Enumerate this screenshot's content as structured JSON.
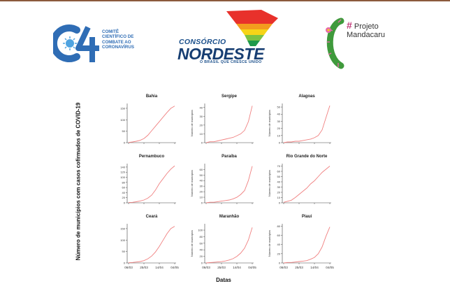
{
  "colors": {
    "line": "#f08080",
    "axis": "#444444",
    "top_rule": "#8b5a3c"
  },
  "logos": {
    "c4": {
      "lines": [
        "COMITÊ",
        "CIENTÍFICO DE",
        "COMBATE AO",
        "CORONAVÍRUS"
      ],
      "color": "#2f6db5",
      "icon": "c4-virus-logo-icon"
    },
    "nordeste": {
      "top": "CONSÓRCIO",
      "main": "NORDESTE",
      "tagline": "O BRASIL QUE CRESCE UNIDO",
      "icon": "nordeste-map-logo-icon"
    },
    "mandacaru": {
      "hash": "#",
      "line1": "Projeto",
      "line2": "Mandacaru",
      "icon": "cactus-logo-icon"
    }
  },
  "chart_data": [
    {
      "type": "line",
      "title": "Bahia",
      "ylabel": "",
      "ylim": [
        0,
        165
      ],
      "yticks": [
        0,
        50,
        100,
        150
      ],
      "x": [
        0,
        5,
        10,
        15,
        20,
        25,
        30,
        35,
        40,
        45,
        50,
        55,
        60
      ],
      "values": [
        1,
        3,
        6,
        10,
        18,
        32,
        52,
        72,
        92,
        112,
        132,
        150,
        160
      ]
    },
    {
      "type": "line",
      "title": "Sergipe",
      "ylabel": "Número de municípios",
      "ylim": [
        0,
        43
      ],
      "yticks": [
        0,
        10,
        20,
        30,
        40
      ],
      "x": [
        0,
        5,
        10,
        15,
        20,
        25,
        30,
        35,
        40,
        45,
        50,
        55,
        60
      ],
      "values": [
        0,
        1,
        1,
        2,
        3,
        4,
        5,
        6,
        8,
        10,
        14,
        24,
        42
      ]
    },
    {
      "type": "line",
      "title": "Alagoas",
      "ylabel": "Número de municípios",
      "ylim": [
        0,
        53
      ],
      "yticks": [
        0,
        10,
        20,
        30,
        40,
        50
      ],
      "x": [
        0,
        5,
        10,
        15,
        20,
        25,
        30,
        35,
        40,
        45,
        50,
        55,
        60
      ],
      "values": [
        0,
        1,
        1,
        2,
        2,
        3,
        4,
        5,
        7,
        10,
        18,
        35,
        52
      ]
    },
    {
      "type": "line",
      "title": "Pernambuco",
      "ylabel": "",
      "ylim": [
        0,
        148
      ],
      "yticks": [
        0,
        20,
        40,
        60,
        80,
        100,
        120,
        140
      ],
      "x": [
        0,
        5,
        10,
        15,
        20,
        25,
        30,
        35,
        40,
        45,
        50,
        55,
        60
      ],
      "values": [
        1,
        2,
        4,
        7,
        11,
        18,
        30,
        50,
        75,
        95,
        115,
        132,
        145
      ]
    },
    {
      "type": "line",
      "title": "Paraíba",
      "ylabel": "Número de municípios",
      "ylim": [
        0,
        68
      ],
      "yticks": [
        0,
        10,
        20,
        30,
        40,
        50,
        60
      ],
      "x": [
        0,
        5,
        10,
        15,
        20,
        25,
        30,
        35,
        40,
        45,
        50,
        55,
        60
      ],
      "values": [
        0,
        1,
        1,
        2,
        3,
        4,
        5,
        7,
        10,
        15,
        22,
        40,
        66
      ]
    },
    {
      "type": "line",
      "title": "Rio Grande do Norte",
      "ylabel": "Número de municípios",
      "ylim": [
        0,
        72
      ],
      "yticks": [
        0,
        10,
        20,
        30,
        40,
        50,
        60,
        70
      ],
      "x": [
        0,
        5,
        10,
        15,
        20,
        25,
        30,
        35,
        40,
        45,
        50,
        55,
        60
      ],
      "values": [
        1,
        3,
        5,
        10,
        16,
        22,
        28,
        36,
        42,
        50,
        58,
        64,
        70
      ]
    },
    {
      "type": "line",
      "title": "Ceará",
      "ylabel": "",
      "ylim": [
        0,
        165
      ],
      "yticks": [
        0,
        50,
        100,
        150
      ],
      "x": [
        0,
        5,
        10,
        15,
        20,
        25,
        30,
        35,
        40,
        45,
        50,
        55,
        60
      ],
      "values": [
        1,
        2,
        4,
        6,
        10,
        18,
        30,
        48,
        72,
        100,
        128,
        150,
        160
      ]
    },
    {
      "type": "line",
      "title": "Maranhão",
      "ylabel": "Número de municípios",
      "ylim": [
        0,
        115
      ],
      "yticks": [
        0,
        20,
        40,
        60,
        80,
        100
      ],
      "x": [
        0,
        5,
        10,
        15,
        20,
        25,
        30,
        35,
        40,
        45,
        50,
        55,
        60
      ],
      "values": [
        0,
        1,
        2,
        3,
        4,
        6,
        9,
        13,
        20,
        30,
        45,
        70,
        108
      ]
    },
    {
      "type": "line",
      "title": "Piauí",
      "ylabel": "Número de municípios",
      "ylim": [
        0,
        82
      ],
      "yticks": [
        0,
        20,
        40,
        60,
        80
      ],
      "x": [
        0,
        5,
        10,
        15,
        20,
        25,
        30,
        35,
        40,
        45,
        50,
        55,
        60
      ],
      "values": [
        0,
        1,
        1,
        2,
        3,
        4,
        5,
        8,
        12,
        20,
        35,
        58,
        78
      ]
    }
  ],
  "x_tick_labels": [
    "06/03",
    "25/03",
    "14/04",
    "04/05"
  ],
  "axis_titles": {
    "y": "Número de municípios com casos cofirmados de COVID-19",
    "x": "Datas"
  }
}
